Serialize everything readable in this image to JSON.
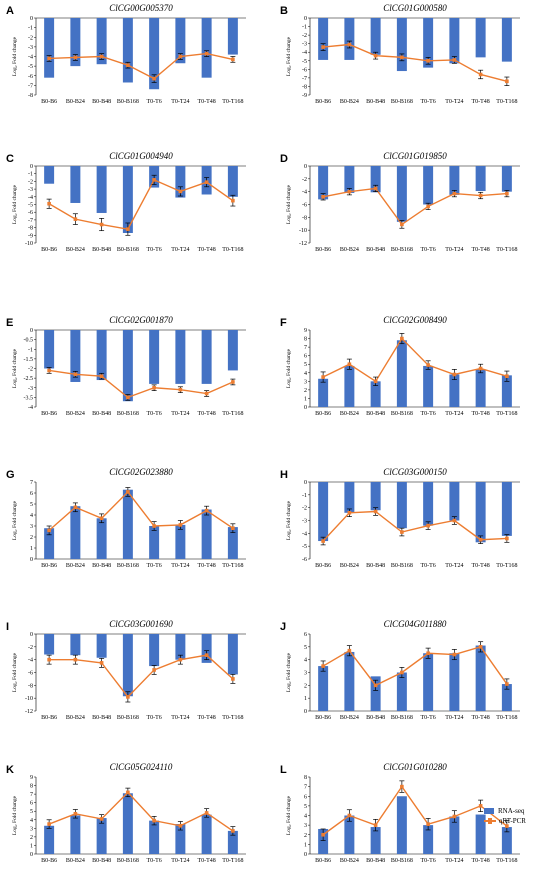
{
  "colors": {
    "bar": "#4472C4",
    "line": "#ED7D31",
    "error": "#000000"
  },
  "legend": {
    "bar_label": "RNA-seq",
    "line_label": "qRT-PCR"
  },
  "categories": [
    "B0-B6",
    "B0-B24",
    "B0-B48",
    "B0-B168",
    "T0-T6",
    "T0-T24",
    "T0-T48",
    "T0-T168"
  ],
  "ylabel": "Log₂ Fold change",
  "chart_data": [
    {
      "type": "bar",
      "letter": "A",
      "title": "ClCG00G005370",
      "ylim": [
        -8,
        0
      ],
      "yticks": [
        0,
        -1,
        -2,
        -3,
        -4,
        -5,
        -6,
        -7,
        -8
      ],
      "series": [
        {
          "name": "RNA-seq",
          "values": [
            -6.2,
            -5,
            -4.8,
            -6.7,
            -7.4,
            -4.7,
            -6.2,
            -3.8
          ]
        },
        {
          "name": "qRT-PCR",
          "values": [
            -4.2,
            -4.1,
            -4.0,
            -4.9,
            -6.3,
            -4.0,
            -3.7,
            -4.3
          ],
          "errors": [
            0.3,
            0.3,
            0.3,
            0.3,
            0.4,
            0.3,
            0.3,
            0.3
          ]
        }
      ]
    },
    {
      "type": "bar",
      "letter": "B",
      "title": "ClCG01G000580",
      "ylim": [
        -9,
        0
      ],
      "yticks": [
        0,
        -1,
        -2,
        -3,
        -4,
        -5,
        -6,
        -7,
        -8,
        -9
      ],
      "series": [
        {
          "name": "RNA-seq",
          "values": [
            -4.9,
            -4.9,
            -4.3,
            -6.2,
            -5.8,
            -5.3,
            -4.6,
            -5.1
          ]
        },
        {
          "name": "qRT-PCR",
          "values": [
            -3.4,
            -3.1,
            -4.4,
            -4.6,
            -5.0,
            -4.9,
            -6.6,
            -7.4
          ],
          "errors": [
            0.4,
            0.4,
            0.4,
            0.4,
            0.4,
            0.4,
            0.5,
            0.5
          ]
        }
      ]
    },
    {
      "type": "bar",
      "letter": "C",
      "title": "ClCG01G004940",
      "ylim": [
        -10,
        0
      ],
      "yticks": [
        0,
        -1,
        -2,
        -3,
        -4,
        -5,
        -6,
        -7,
        -8,
        -9,
        -10
      ],
      "series": [
        {
          "name": "RNA-seq",
          "values": [
            -2.3,
            -4.8,
            -6.1,
            -8.7,
            -2.8,
            -4.1,
            -3.7,
            -4.0
          ]
        },
        {
          "name": "qRT-PCR",
          "values": [
            -4.9,
            -6.9,
            -7.6,
            -8.2,
            -1.8,
            -3.3,
            -2.1,
            -4.5
          ],
          "errors": [
            0.6,
            0.7,
            0.8,
            0.8,
            0.6,
            0.6,
            0.6,
            0.7
          ]
        }
      ]
    },
    {
      "type": "bar",
      "letter": "D",
      "title": "ClCG01G019850",
      "ylim": [
        -12,
        0
      ],
      "yticks": [
        0,
        -2,
        -4,
        -6,
        -8,
        -10,
        -12
      ],
      "series": [
        {
          "name": "RNA-seq",
          "values": [
            -5.2,
            -4.2,
            -4.1,
            -8.7,
            -6.0,
            -4.5,
            -3.9,
            -4.0
          ]
        },
        {
          "name": "qRT-PCR",
          "values": [
            -4.8,
            -4.0,
            -3.5,
            -9.1,
            -6.3,
            -4.3,
            -4.6,
            -4.3
          ],
          "errors": [
            0.5,
            0.5,
            0.5,
            0.6,
            0.5,
            0.5,
            0.5,
            0.5
          ]
        }
      ]
    },
    {
      "type": "bar",
      "letter": "E",
      "title": "ClCG02G001870",
      "ylim": [
        -4,
        0
      ],
      "yticks": [
        0,
        -0.5,
        -1,
        -1.5,
        -2,
        -2.5,
        -3,
        -3.5,
        -4
      ],
      "series": [
        {
          "name": "RNA-seq",
          "values": [
            -2.0,
            -2.7,
            -2.6,
            -3.7,
            -2.8,
            -2.8,
            -2.8,
            -2.1
          ]
        },
        {
          "name": "qRT-PCR",
          "values": [
            -2.1,
            -2.3,
            -2.4,
            -3.5,
            -3.0,
            -3.1,
            -3.3,
            -2.7
          ],
          "errors": [
            0.15,
            0.15,
            0.15,
            0.15,
            0.15,
            0.15,
            0.15,
            0.15
          ]
        }
      ]
    },
    {
      "type": "bar",
      "letter": "F",
      "title": "ClCG02G008490",
      "ylim": [
        0,
        9
      ],
      "yticks": [
        0,
        1,
        2,
        3,
        4,
        5,
        6,
        7,
        8,
        9
      ],
      "series": [
        {
          "name": "RNA-seq",
          "values": [
            3.3,
            4.8,
            3.0,
            7.8,
            4.8,
            3.8,
            4.4,
            3.7
          ]
        },
        {
          "name": "qRT-PCR",
          "values": [
            3.5,
            5.0,
            3.0,
            8.0,
            4.9,
            3.8,
            4.5,
            3.6
          ],
          "errors": [
            0.6,
            0.6,
            0.5,
            0.6,
            0.5,
            0.6,
            0.5,
            0.6
          ]
        }
      ]
    },
    {
      "type": "bar",
      "letter": "G",
      "title": "ClCG02G023880",
      "ylim": [
        0,
        7
      ],
      "yticks": [
        0,
        1,
        2,
        3,
        4,
        5,
        6,
        7
      ],
      "series": [
        {
          "name": "RNA-seq",
          "values": [
            2.8,
            4.8,
            3.7,
            6.3,
            3.0,
            3.1,
            4.5,
            2.9
          ]
        },
        {
          "name": "qRT-PCR",
          "values": [
            2.6,
            4.7,
            3.7,
            6.1,
            3.0,
            3.1,
            4.4,
            2.8
          ],
          "errors": [
            0.4,
            0.4,
            0.4,
            0.4,
            0.4,
            0.4,
            0.4,
            0.4
          ]
        }
      ]
    },
    {
      "type": "bar",
      "letter": "H",
      "title": "ClCG03G000150",
      "ylim": [
        -6,
        0
      ],
      "yticks": [
        0,
        -1,
        -2,
        -3,
        -4,
        -5,
        -6
      ],
      "series": [
        {
          "name": "RNA-seq",
          "values": [
            -4.6,
            -2.4,
            -2.2,
            -3.6,
            -3.4,
            -3.0,
            -4.7,
            -4.2
          ]
        },
        {
          "name": "qRT-PCR",
          "values": [
            -4.6,
            -2.4,
            -2.3,
            -3.9,
            -3.4,
            -3.0,
            -4.5,
            -4.4
          ],
          "errors": [
            0.3,
            0.3,
            0.3,
            0.3,
            0.3,
            0.3,
            0.3,
            0.3
          ]
        }
      ]
    },
    {
      "type": "bar",
      "letter": "I",
      "title": "ClCG03G001690",
      "ylim": [
        -12,
        0
      ],
      "yticks": [
        0,
        -2,
        -4,
        -6,
        -8,
        -10,
        -12
      ],
      "series": [
        {
          "name": "RNA-seq",
          "values": [
            -3.2,
            -3.3,
            -3.7,
            -9.7,
            -5.0,
            -4.0,
            -4.5,
            -6.3
          ]
        },
        {
          "name": "qRT-PCR",
          "values": [
            -4.0,
            -4.0,
            -4.5,
            -9.8,
            -5.6,
            -4.0,
            -3.3,
            -7.0
          ],
          "errors": [
            0.7,
            0.7,
            0.7,
            0.8,
            0.7,
            0.7,
            0.7,
            0.7
          ]
        }
      ]
    },
    {
      "type": "bar",
      "letter": "J",
      "title": "ClCG04G011880",
      "ylim": [
        0,
        6
      ],
      "yticks": [
        0,
        1,
        2,
        3,
        4,
        5,
        6
      ],
      "series": [
        {
          "name": "RNA-seq",
          "values": [
            3.5,
            4.6,
            2.7,
            3.0,
            4.5,
            4.5,
            5.1,
            2.1
          ]
        },
        {
          "name": "qRT-PCR",
          "values": [
            3.5,
            4.7,
            2.0,
            3.0,
            4.5,
            4.4,
            5.0,
            2.1
          ],
          "errors": [
            0.4,
            0.4,
            0.4,
            0.4,
            0.4,
            0.4,
            0.4,
            0.4
          ]
        }
      ]
    },
    {
      "type": "bar",
      "letter": "K",
      "title": "ClCG05G024110",
      "ylim": [
        0,
        9
      ],
      "yticks": [
        0,
        1,
        2,
        3,
        4,
        5,
        6,
        7,
        8,
        9
      ],
      "series": [
        {
          "name": "RNA-seq",
          "values": [
            3.3,
            4.5,
            4.2,
            7.1,
            3.9,
            3.5,
            4.6,
            2.7
          ]
        },
        {
          "name": "qRT-PCR",
          "values": [
            3.5,
            4.7,
            4.1,
            7.2,
            3.9,
            3.3,
            4.8,
            2.7
          ],
          "errors": [
            0.5,
            0.5,
            0.5,
            0.5,
            0.5,
            0.5,
            0.5,
            0.5
          ]
        }
      ]
    },
    {
      "type": "bar",
      "letter": "L",
      "title": "ClCG01G010280",
      "ylim": [
        0,
        8
      ],
      "yticks": [
        0,
        1,
        2,
        3,
        4,
        5,
        6,
        7,
        8
      ],
      "series": [
        {
          "name": "RNA-seq",
          "values": [
            2.6,
            4.0,
            2.8,
            6.0,
            3.0,
            3.9,
            4.1,
            2.8
          ]
        },
        {
          "name": "qRT-PCR",
          "values": [
            2.0,
            4.0,
            3.0,
            7.0,
            3.1,
            3.9,
            5.0,
            2.9
          ],
          "errors": [
            0.6,
            0.6,
            0.6,
            0.6,
            0.6,
            0.6,
            0.6,
            0.6
          ]
        }
      ]
    }
  ]
}
